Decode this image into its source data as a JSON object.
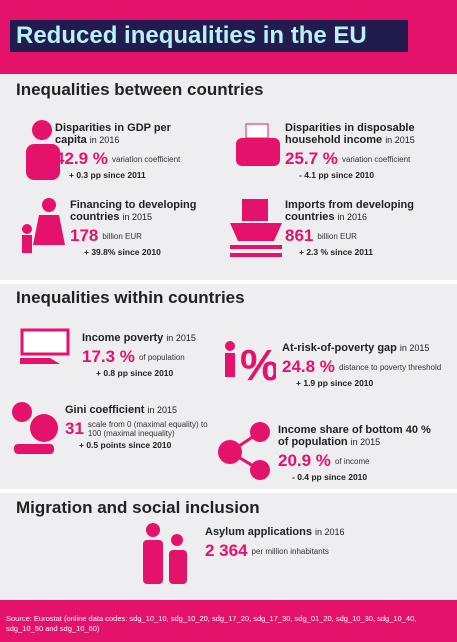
{
  "header": {
    "title": "Reduced inequalities in the EU"
  },
  "sections": [
    {
      "title": "Inequalities between countries",
      "items": [
        {
          "title": "Disparities in GDP per capita",
          "year": "in 2016",
          "value": "42.9 %",
          "note": "variation coefficient",
          "change": "+ 0.3 pp since 2011"
        },
        {
          "title": "Disparities in disposable household income",
          "year": "in 2015",
          "value": "25.7 %",
          "note": "variation coefficient",
          "change": "- 4.1 pp since 2010"
        },
        {
          "title": "Financing to developing countries",
          "year": "in 2015",
          "value": "178",
          "note": "billion EUR",
          "change": "+ 39.8% since 2010"
        },
        {
          "title": "Imports from developing countries",
          "year": "in 2016",
          "value": "861",
          "note": "billion EUR",
          "change": "+ 2.3 % since 2011"
        }
      ]
    },
    {
      "title": "Inequalities within countries",
      "items": [
        {
          "title": "Income poverty",
          "year": "in 2015",
          "value": "17.3 %",
          "note": "of population",
          "change": "+ 0.8 pp since 2010"
        },
        {
          "title": "At-risk-of-poverty gap",
          "year": "in 2015",
          "value": "24.8 %",
          "note": "distance to poverty threshold",
          "change": "+ 1.9 pp since 2010"
        },
        {
          "title": "Gini coefficient",
          "year": "in 2015",
          "value": "31",
          "note": "scale from 0 (maximal equality) to 100 (maximal inequality)",
          "change": "+ 0.5 points since 2010"
        },
        {
          "title": "Income share of bottom 40 % of population",
          "year": "in 2015",
          "value": "20.9 %",
          "note": "of income",
          "change": "- 0.4 pp since 2010"
        }
      ]
    },
    {
      "title": "Migration and social inclusion",
      "items": [
        {
          "title": "Asylum applications",
          "year": "in 2016",
          "value": "2 364",
          "note": "per million inhabitants",
          "change": null
        }
      ]
    }
  ],
  "footer": {
    "source": "Source: Eurostat (online data codes: sdg_10_10, sdg_10_20, sdg_17_20, sdg_17_30, sdg_01_20, sdg_10_30, sdg_10_40, sdg_10_50 and sdg_10_60)"
  }
}
